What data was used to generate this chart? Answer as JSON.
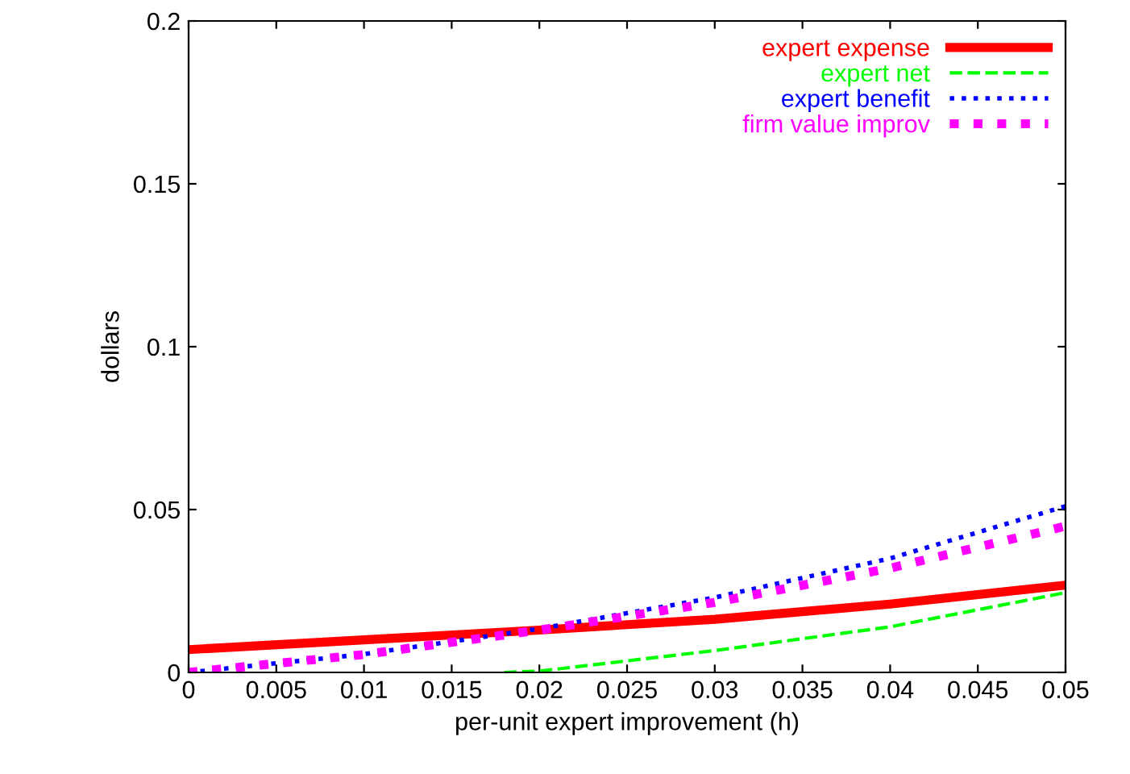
{
  "chart_data": {
    "type": "line",
    "xlabel": "per-unit expert improvement (h)",
    "ylabel": "dollars",
    "x": [
      0,
      0.01,
      0.02,
      0.03,
      0.04,
      0.05
    ],
    "xlim": [
      0,
      0.05
    ],
    "ylim": [
      0,
      0.2
    ],
    "xticks": [
      0,
      0.005,
      0.01,
      0.015,
      0.02,
      0.025,
      0.03,
      0.035,
      0.04,
      0.045,
      0.05
    ],
    "yticks": [
      0,
      0.05,
      0.1,
      0.15,
      0.2
    ],
    "grid": false,
    "legend": "top right",
    "series": [
      {
        "name": "expert expense",
        "color": "#ff0000",
        "values": [
          0.007,
          0.01,
          0.013,
          0.0163,
          0.021,
          0.0268
        ],
        "line_style": "solid"
      },
      {
        "name": "expert net",
        "color": "#00ff00",
        "x": [
          0.018,
          0.02,
          0.03,
          0.04,
          0.05
        ],
        "values": [
          0,
          0.0004,
          0.0067,
          0.014,
          0.0245
        ],
        "line_style": "dashed"
      },
      {
        "name": "expert benefit",
        "color": "#0000ff",
        "values": [
          0,
          0.0056,
          0.0134,
          0.023,
          0.035,
          0.051
        ],
        "line_style": "dotted"
      },
      {
        "name": "firm value improv",
        "color": "#ff00ff",
        "values": [
          0,
          0.0055,
          0.013,
          0.0215,
          0.032,
          0.0449
        ],
        "line_style": "dotted"
      }
    ]
  }
}
